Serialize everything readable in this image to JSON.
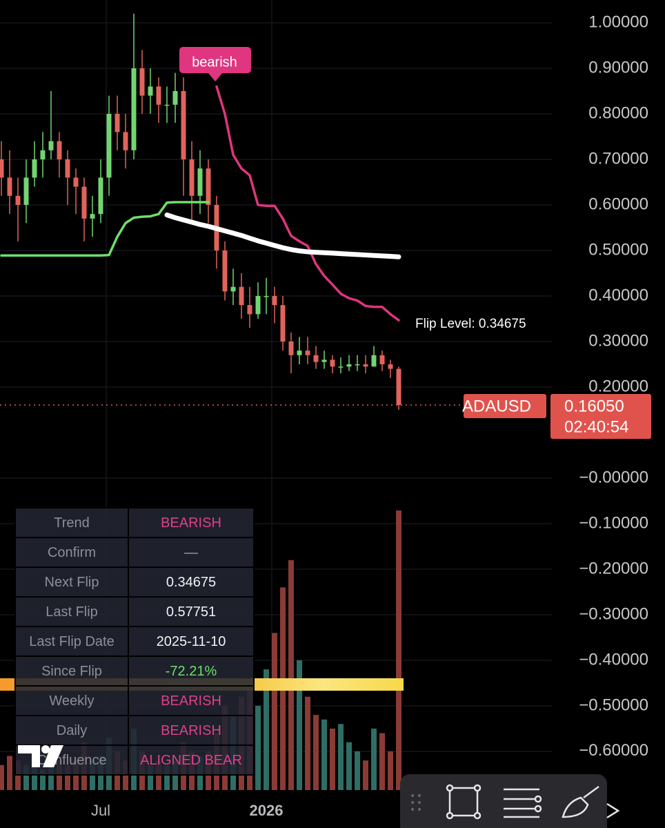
{
  "chart_data": {
    "type": "candlestick",
    "categories": [
      null,
      null,
      null,
      null,
      null,
      null,
      null,
      null,
      null,
      null,
      null,
      null,
      "Jul",
      null,
      null,
      null,
      null,
      null,
      null,
      null,
      null,
      null,
      null,
      null,
      null,
      null,
      null,
      null,
      null,
      null,
      null,
      null,
      "2026",
      null,
      null,
      null,
      null,
      null,
      null,
      null,
      null,
      null,
      null,
      null,
      null,
      null,
      null,
      null,
      null
    ],
    "open": [
      0.7,
      0.66,
      0.62,
      0.6,
      0.66,
      0.7,
      0.72,
      0.74,
      0.7,
      0.66,
      0.64,
      0.57,
      0.58,
      0.66,
      0.8,
      0.76,
      0.72,
      0.9,
      0.84,
      0.86,
      0.82,
      0.82,
      0.85,
      0.7,
      0.62,
      0.68,
      0.6,
      0.5,
      0.41,
      0.42,
      0.38,
      0.36,
      0.4,
      0.4,
      0.38,
      0.3,
      0.27,
      0.28,
      0.27,
      0.255,
      0.26,
      0.245,
      0.245,
      0.25,
      0.25,
      0.245,
      0.27,
      0.25,
      0.24
    ],
    "high": [
      0.74,
      0.72,
      0.66,
      0.7,
      0.74,
      0.76,
      0.85,
      0.76,
      0.72,
      0.68,
      0.66,
      0.62,
      0.7,
      0.84,
      0.84,
      0.8,
      1.02,
      0.94,
      0.9,
      0.88,
      0.86,
      0.89,
      0.88,
      0.74,
      0.72,
      0.7,
      0.62,
      0.52,
      0.46,
      0.45,
      0.42,
      0.43,
      0.44,
      0.42,
      0.4,
      0.32,
      0.31,
      0.31,
      0.29,
      0.28,
      0.27,
      0.265,
      0.27,
      0.27,
      0.27,
      0.29,
      0.28,
      0.26,
      0.245
    ],
    "low": [
      0.62,
      0.58,
      0.52,
      0.56,
      0.64,
      0.66,
      0.7,
      0.66,
      0.6,
      0.58,
      0.52,
      0.53,
      0.56,
      0.62,
      0.72,
      0.68,
      0.7,
      0.8,
      0.8,
      0.78,
      0.78,
      0.78,
      0.62,
      0.56,
      0.58,
      0.56,
      0.46,
      0.39,
      0.38,
      0.35,
      0.33,
      0.35,
      0.36,
      0.34,
      0.28,
      0.23,
      0.25,
      0.25,
      0.24,
      0.24,
      0.23,
      0.23,
      0.235,
      0.235,
      0.23,
      0.25,
      0.235,
      0.22,
      0.15
    ],
    "close": [
      0.66,
      0.62,
      0.6,
      0.66,
      0.7,
      0.72,
      0.74,
      0.7,
      0.66,
      0.64,
      0.57,
      0.58,
      0.66,
      0.8,
      0.76,
      0.72,
      0.9,
      0.84,
      0.86,
      0.82,
      0.82,
      0.85,
      0.7,
      0.62,
      0.68,
      0.6,
      0.5,
      0.41,
      0.42,
      0.38,
      0.36,
      0.4,
      0.4,
      0.38,
      0.3,
      0.27,
      0.28,
      0.27,
      0.255,
      0.26,
      0.245,
      0.245,
      0.25,
      0.25,
      0.245,
      0.27,
      0.25,
      0.24,
      0.1605
    ],
    "colors": {
      "up": "#72d572",
      "down": "#e0645c"
    },
    "lines": [
      {
        "color": "#6ee06a",
        "values": [
          0.489,
          0.489,
          0.489,
          0.489,
          0.489,
          0.489,
          0.489,
          0.489,
          0.489,
          0.489,
          0.489,
          0.489,
          0.489,
          0.49,
          0.53,
          0.56,
          0.572,
          0.574,
          0.575,
          0.58,
          0.605,
          0.606,
          0.606,
          0.606,
          0.606,
          0.606,
          null,
          null,
          null,
          null,
          null,
          null,
          null,
          null,
          null,
          null,
          null,
          null,
          null,
          null,
          null,
          null,
          null,
          null,
          null,
          null,
          null,
          null,
          null
        ]
      },
      {
        "color": "#e0357f",
        "values": [
          null,
          null,
          null,
          null,
          null,
          null,
          null,
          null,
          null,
          null,
          null,
          null,
          null,
          null,
          null,
          null,
          null,
          null,
          null,
          null,
          null,
          null,
          null,
          null,
          null,
          null,
          0.86,
          0.8,
          0.71,
          0.68,
          0.665,
          0.6,
          0.598,
          0.598,
          0.57,
          0.532,
          0.52,
          0.51,
          0.47,
          0.444,
          0.425,
          0.405,
          0.395,
          0.39,
          0.378,
          0.376,
          0.376,
          0.36,
          0.34675
        ]
      },
      {
        "color": "#ffffff",
        "values": [
          null,
          null,
          null,
          null,
          null,
          null,
          null,
          null,
          null,
          null,
          null,
          null,
          null,
          null,
          null,
          null,
          null,
          null,
          null,
          null,
          0.578,
          0.572,
          0.567,
          0.562,
          0.557,
          0.553,
          0.548,
          0.543,
          0.538,
          0.533,
          0.527,
          0.521,
          0.516,
          0.511,
          0.506,
          0.502,
          0.499,
          0.497,
          0.496,
          0.495,
          0.494,
          0.493,
          0.492,
          0.491,
          0.49,
          0.489,
          0.488,
          0.487,
          0.486
        ]
      }
    ],
    "volume": {
      "up_color": "#2f6e66",
      "down_color": "#8a3b36",
      "values": [
        -0.63,
        -0.61,
        -0.62,
        -0.63,
        -0.62,
        -0.64,
        -0.6,
        -0.62,
        -0.63,
        -0.62,
        -0.58,
        -0.62,
        -0.61,
        -0.57,
        -0.6,
        -0.62,
        -0.55,
        -0.6,
        -0.63,
        -0.62,
        -0.63,
        -0.62,
        -0.58,
        -0.6,
        -0.61,
        -0.6,
        -0.56,
        -0.5,
        -0.52,
        -0.48,
        -0.45,
        -0.5,
        -0.42,
        -0.34,
        -0.24,
        -0.18,
        -0.4,
        -0.48,
        -0.52,
        -0.53,
        -0.55,
        -0.54,
        -0.58,
        -0.6,
        -0.62,
        -0.55,
        -0.56,
        -0.6,
        -0.071
      ]
    },
    "ylim": [
      -0.685,
      1.05
    ],
    "yticks": [
      {
        "value": 1,
        "label": "1.00000"
      },
      {
        "value": 0.9,
        "label": "0.90000"
      },
      {
        "value": 0.8,
        "label": "0.80000"
      },
      {
        "value": 0.7,
        "label": "0.70000"
      },
      {
        "value": 0.6,
        "label": "0.60000"
      },
      {
        "value": 0.5,
        "label": "0.50000"
      },
      {
        "value": 0.4,
        "label": "0.40000"
      },
      {
        "value": 0.3,
        "label": "0.30000"
      },
      {
        "value": 0.2,
        "label": "0.20000"
      },
      {
        "value": 0,
        "label": "−0.00000"
      },
      {
        "value": -0.1,
        "label": "−0.10000"
      },
      {
        "value": -0.2,
        "label": "−0.20000"
      },
      {
        "value": -0.3,
        "label": "−0.30000"
      },
      {
        "value": -0.4,
        "label": "−0.40000"
      },
      {
        "value": -0.5,
        "label": "−0.50000"
      },
      {
        "value": -0.6,
        "label": "−0.60000"
      }
    ],
    "grid": true,
    "last_price": 0.1605,
    "annotations": {
      "signal": "bearish",
      "flip_level": "Flip Level: 0.34675",
      "symbol": "ADAUSD",
      "last_price_label": "0.16050",
      "countdown": "02:40:54"
    }
  },
  "table": {
    "rows": [
      [
        "Trend",
        "BEARISH"
      ],
      [
        "Confirm",
        "—"
      ],
      [
        "Next Flip",
        "0.34675"
      ],
      [
        "Last Flip",
        "0.57751"
      ],
      [
        "Last Flip Date",
        "2025-11-10"
      ],
      [
        "Since Flip",
        "-72.21%"
      ],
      [
        "Weekly",
        "BEARISH"
      ],
      [
        "Daily",
        "BEARISH"
      ],
      [
        "Confluence",
        "ALIGNED BEAR"
      ]
    ]
  }
}
